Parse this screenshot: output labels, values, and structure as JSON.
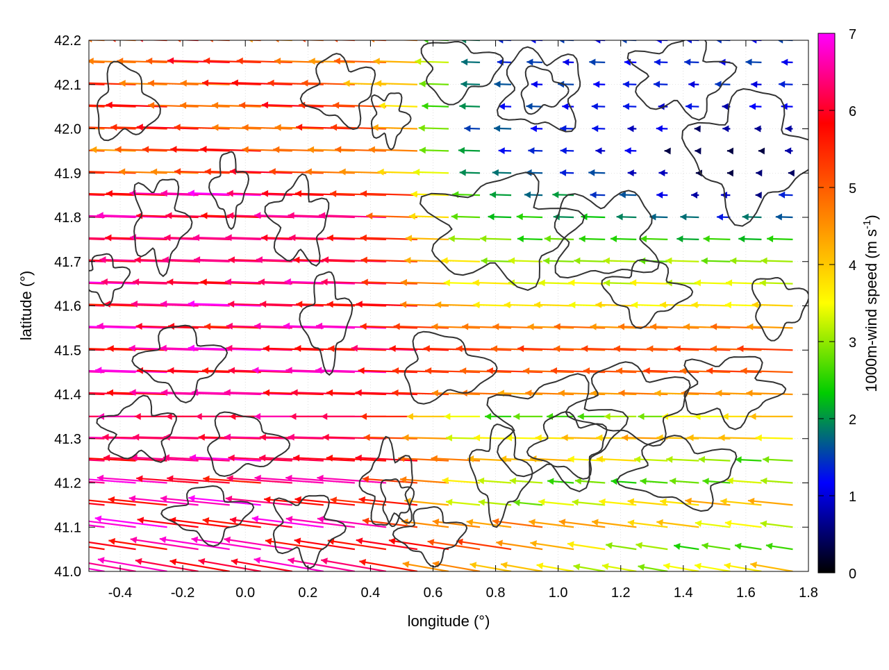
{
  "chart_data": {
    "type": "vector field",
    "title": "",
    "xlabel": "longitude (°)",
    "ylabel": "latitude (°)",
    "xlim": [
      -0.5,
      1.8
    ],
    "ylim": [
      41.0,
      42.2
    ],
    "xticks": [
      "-0.4",
      "-0.2",
      "0.0",
      "0.2",
      "0.4",
      "0.6",
      "0.8",
      "1.0",
      "1.2",
      "1.4",
      "1.6",
      "1.8"
    ],
    "yticks": [
      "41.0",
      "41.1",
      "41.2",
      "41.3",
      "41.4",
      "41.5",
      "41.6",
      "41.7",
      "41.8",
      "41.9",
      "42.0",
      "42.1",
      "42.2"
    ],
    "grid": "dotted",
    "colorbar": {
      "label": "1000m-wind speed (m s",
      "label_sup": "-1",
      "label_close": ")",
      "range": [
        0,
        7
      ],
      "ticks": [
        "0",
        "1",
        "2",
        "3",
        "4",
        "5",
        "6",
        "7"
      ],
      "colormap": [
        "#000000",
        "#0000ff",
        "#00cc00",
        "#ffff00",
        "#ff8000",
        "#ff0000",
        "#ff00ff"
      ]
    },
    "vector_field": {
      "direction": "westward (arrows point west, slight southward tilt in the south)",
      "lon_step": 0.1,
      "lat_step": 0.05,
      "speed_regions": [
        {
          "region": "west of 0.6°E",
          "speed_ms": 6.8
        },
        {
          "region": "41.4–41.6°N, east of 0.6°E",
          "speed_ms": 5.0
        },
        {
          "region": "41.7–41.8°N, 0.7–1.4°E",
          "speed_ms": 2.0
        },
        {
          "region": "41.8–42.1°N, 1.0–1.8°E",
          "speed_ms": 1.0
        },
        {
          "region": "south-east, 41.0–41.3°N, 1.2–1.8°E",
          "speed_ms": 3.5
        }
      ]
    },
    "contours": "terrain height contours (dark gray)"
  }
}
